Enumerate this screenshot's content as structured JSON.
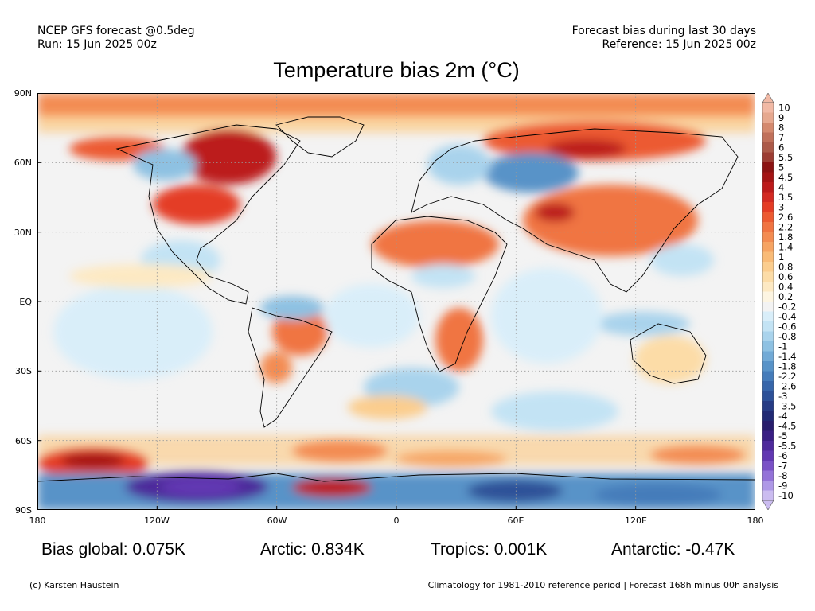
{
  "header": {
    "model": "NCEP GFS forecast @0.5deg",
    "run": "Run: 15 Jun 2025 00z",
    "bias_period": "Forecast bias during last 30 days",
    "reference": "Reference: 15 Jun 2025 00z"
  },
  "title": "Temperature bias 2m (°C)",
  "lat_labels": [
    "90N",
    "60N",
    "30N",
    "EQ",
    "30S",
    "60S",
    "90S"
  ],
  "lon_labels": [
    "180",
    "120W",
    "60W",
    "0",
    "60E",
    "120E",
    "180"
  ],
  "legend": {
    "labels": [
      "10",
      "9",
      "8",
      "7",
      "6",
      "5.5",
      "5",
      "4.5",
      "4",
      "3.5",
      "3",
      "2.6",
      "2.2",
      "1.8",
      "1.4",
      "1",
      "0.8",
      "0.6",
      "0.4",
      "0.2",
      "-0.2",
      "-0.4",
      "-0.6",
      "-0.8",
      "-1",
      "-1.4",
      "-1.8",
      "-2.2",
      "-2.6",
      "-3",
      "-3.5",
      "-4",
      "-4.5",
      "-5",
      "-5.5",
      "-6",
      "-7",
      "-8",
      "-9",
      "-10"
    ],
    "colors": [
      "#f1b9a5",
      "#e6a88f",
      "#d4896e",
      "#c0705a",
      "#ac5a49",
      "#9c3d33",
      "#8b1313",
      "#a41515",
      "#bc1b1b",
      "#d32a22",
      "#e43c25",
      "#ec5a31",
      "#f07442",
      "#f38c52",
      "#f6a463",
      "#f9bb77",
      "#fbcd8e",
      "#fcdca7",
      "#fde9c3",
      "#fdf5e2",
      "#f3f3f3",
      "#d9eef9",
      "#c3e3f4",
      "#a9d3ec",
      "#8ec1e2",
      "#72aad6",
      "#5893c8",
      "#457cba",
      "#3766aa",
      "#2d5198",
      "#273c85",
      "#212a74",
      "#281d6c",
      "#3a1f84",
      "#4e2a9b",
      "#6238b2",
      "#7a51c6",
      "#9473d8",
      "#ae98e6",
      "#cbbcf0"
    ]
  },
  "stats": {
    "global": "Bias global: 0.075K",
    "arctic": "Arctic: 0.834K",
    "tropics": "Tropics: 0.001K",
    "antarctic": "Antarctic: -0.47K"
  },
  "footer": {
    "credit": "(c) Karsten Haustein",
    "note": "Climatology for 1981-2010 reference period | Forecast 168h minus 00h analysis"
  }
}
